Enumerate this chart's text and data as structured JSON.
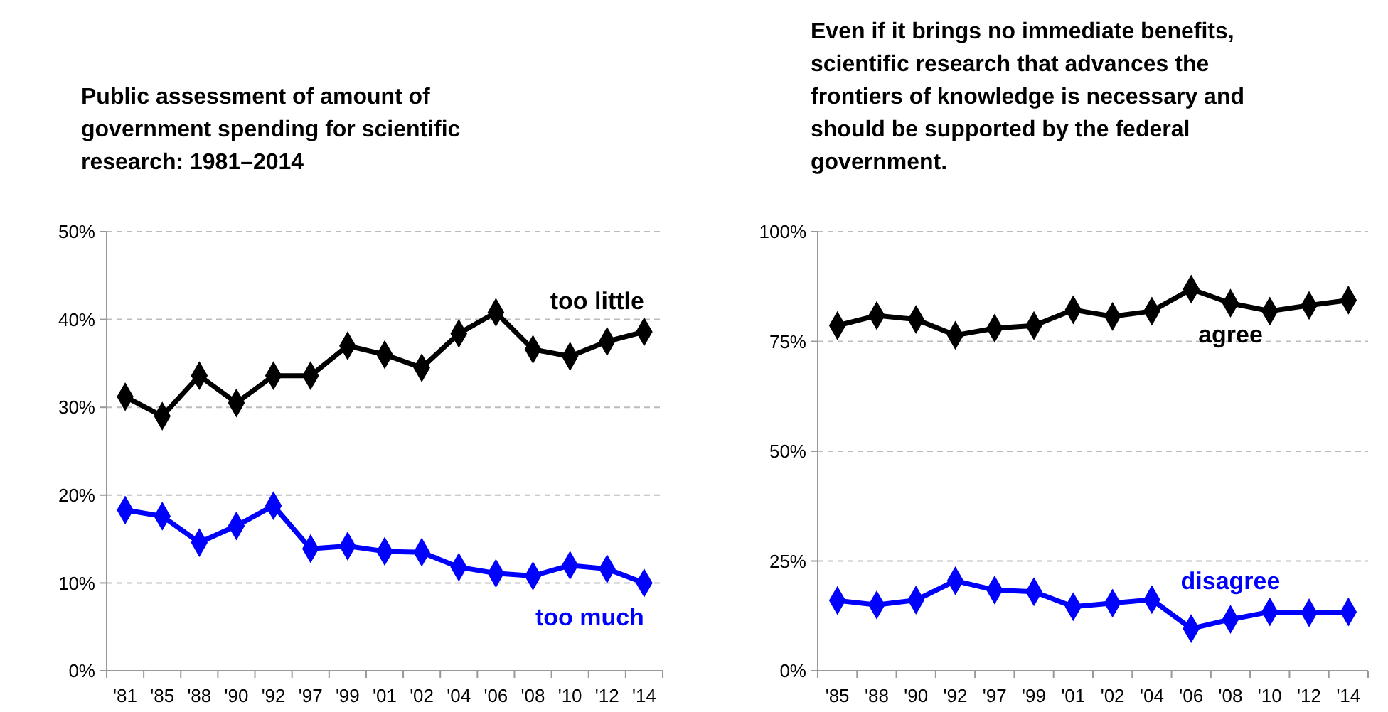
{
  "chart_data": [
    {
      "type": "line",
      "title": "Public assessment of amount of government spending for scientific research: 1981–2014",
      "categories": [
        "'81",
        "'85",
        "'88",
        "'90",
        "'92",
        "'97",
        "'99",
        "'01",
        "'02",
        "'04",
        "'06",
        "'08",
        "'10",
        "'12",
        "'14"
      ],
      "series": [
        {
          "name": "too little",
          "color": "#000000",
          "values": [
            31.2,
            29,
            33.6,
            30.5,
            33.6,
            33.6,
            37,
            36,
            34.5,
            38.4,
            40.8,
            36.6,
            35.8,
            37.5,
            38.6
          ]
        },
        {
          "name": "too much",
          "color": "#0000ff",
          "values": [
            18.3,
            17.6,
            14.6,
            16.5,
            18.8,
            13.9,
            14.2,
            13.6,
            13.5,
            11.8,
            11.1,
            10.8,
            12,
            11.6,
            10
          ]
        }
      ],
      "ylim": [
        0,
        50
      ],
      "yticks": [
        {
          "value": 0,
          "label": "0%"
        },
        {
          "value": 10,
          "label": "10%"
        },
        {
          "value": 20,
          "label": "20%"
        },
        {
          "value": 30,
          "label": "30%"
        },
        {
          "value": 40,
          "label": "40%"
        },
        {
          "value": 50,
          "label": "50%"
        }
      ],
      "grid": "y",
      "marker": "diamond"
    },
    {
      "type": "line",
      "title": "Even if it brings no immediate benefits, scientific research that advances the frontiers of knowledge is necessary and should be supported by the federal government.",
      "categories": [
        "'85",
        "'88",
        "'90",
        "'92",
        "'97",
        "'99",
        "'01",
        "'02",
        "'04",
        "'06",
        "'08",
        "'10",
        "'12",
        "'14"
      ],
      "series": [
        {
          "name": "agree",
          "color": "#000000",
          "values": [
            78.6,
            80.9,
            80,
            76.4,
            78,
            78.6,
            82.2,
            80.7,
            81.9,
            86.9,
            83.7,
            81.9,
            83.2,
            84.4
          ]
        },
        {
          "name": "disagree",
          "color": "#0000ff",
          "values": [
            16,
            15,
            16.1,
            20.5,
            18.4,
            18,
            14.6,
            15.4,
            16.2,
            9.6,
            11.7,
            13.4,
            13.2,
            13.4
          ]
        }
      ],
      "ylim": [
        0,
        100
      ],
      "yticks": [
        {
          "value": 0,
          "label": "0%"
        },
        {
          "value": 25,
          "label": "25%"
        },
        {
          "value": 50,
          "label": "50%"
        },
        {
          "value": 75,
          "label": "75%"
        },
        {
          "value": 100,
          "label": "100%"
        }
      ],
      "grid": "y",
      "marker": "diamond"
    }
  ]
}
